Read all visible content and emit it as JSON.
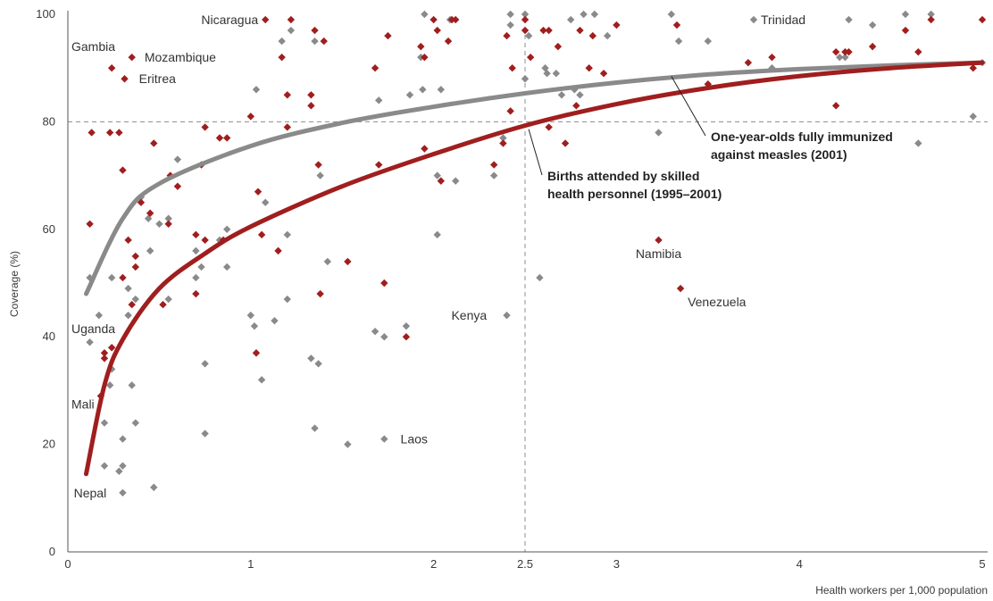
{
  "chart_data": {
    "type": "scatter",
    "xlabel": "Health workers per 1,000 population",
    "ylabel": "Coverage (%)",
    "xlim": [
      0,
      5
    ],
    "ylim": [
      0,
      100
    ],
    "x_ticks": [
      "0",
      "1",
      "2",
      "2.5",
      "3",
      "4",
      "5"
    ],
    "x_tick_values": [
      0,
      1,
      2,
      2.5,
      3,
      4,
      5
    ],
    "y_ticks": [
      "0",
      "20",
      "40",
      "60",
      "80",
      "100"
    ],
    "y_tick_values": [
      0,
      20,
      40,
      60,
      80,
      100
    ],
    "reference_lines": {
      "x": 2.5,
      "y": 80
    },
    "colors": {
      "measles": "#8a8a8a",
      "births": "#a01e1e"
    },
    "series": [
      {
        "name": "One-year-olds fully immunized against measles (2001)",
        "label_lines": [
          "One-year-olds fully immunized",
          "against measles (2001)"
        ],
        "color": "#8a8a8a",
        "points": [
          [
            0.12,
            39
          ],
          [
            0.12,
            51
          ],
          [
            0.17,
            44
          ],
          [
            0.2,
            24
          ],
          [
            0.2,
            16
          ],
          [
            0.23,
            31
          ],
          [
            0.24,
            34
          ],
          [
            0.24,
            51
          ],
          [
            0.28,
            15
          ],
          [
            0.3,
            11
          ],
          [
            0.3,
            16
          ],
          [
            0.3,
            21
          ],
          [
            0.33,
            44
          ],
          [
            0.33,
            49
          ],
          [
            0.35,
            31
          ],
          [
            0.37,
            24
          ],
          [
            0.37,
            47
          ],
          [
            0.4,
            66
          ],
          [
            0.44,
            62
          ],
          [
            0.45,
            56
          ],
          [
            0.47,
            12
          ],
          [
            0.5,
            61
          ],
          [
            0.55,
            62
          ],
          [
            0.55,
            47
          ],
          [
            0.6,
            73
          ],
          [
            0.7,
            56
          ],
          [
            0.7,
            51
          ],
          [
            0.73,
            53
          ],
          [
            0.75,
            35
          ],
          [
            0.75,
            22
          ],
          [
            0.83,
            58
          ],
          [
            0.87,
            60
          ],
          [
            0.87,
            53
          ],
          [
            1.0,
            44
          ],
          [
            1.02,
            42
          ],
          [
            1.03,
            86
          ],
          [
            1.06,
            32
          ],
          [
            1.08,
            65
          ],
          [
            1.13,
            43
          ],
          [
            1.17,
            95
          ],
          [
            1.2,
            47
          ],
          [
            1.2,
            59
          ],
          [
            1.22,
            97
          ],
          [
            1.33,
            36
          ],
          [
            1.35,
            23
          ],
          [
            1.35,
            95
          ],
          [
            1.37,
            35
          ],
          [
            1.38,
            70
          ],
          [
            1.42,
            54
          ],
          [
            1.53,
            20
          ],
          [
            1.68,
            41
          ],
          [
            1.7,
            84
          ],
          [
            1.73,
            40
          ],
          [
            1.73,
            21
          ],
          [
            1.85,
            42
          ],
          [
            1.87,
            85
          ],
          [
            1.94,
            86
          ],
          [
            1.95,
            100
          ],
          [
            1.93,
            92
          ],
          [
            2.02,
            70
          ],
          [
            2.02,
            59
          ],
          [
            2.04,
            86
          ],
          [
            2.09,
            99
          ],
          [
            2.12,
            69
          ],
          [
            2.33,
            70
          ],
          [
            2.38,
            77
          ],
          [
            2.4,
            44
          ],
          [
            2.42,
            98
          ],
          [
            2.42,
            100
          ],
          [
            2.5,
            100
          ],
          [
            2.5,
            88
          ],
          [
            2.52,
            96
          ],
          [
            2.58,
            51
          ],
          [
            2.61,
            90
          ],
          [
            2.62,
            89
          ],
          [
            2.67,
            89
          ],
          [
            2.7,
            85
          ],
          [
            2.75,
            99
          ],
          [
            2.77,
            86
          ],
          [
            2.8,
            85
          ],
          [
            2.82,
            100
          ],
          [
            2.88,
            100
          ],
          [
            2.95,
            96
          ],
          [
            3.23,
            78
          ],
          [
            3.3,
            100
          ],
          [
            3.34,
            95
          ],
          [
            3.5,
            95
          ],
          [
            3.75,
            99
          ],
          [
            3.85,
            90
          ],
          [
            4.22,
            92
          ],
          [
            4.25,
            92
          ],
          [
            4.27,
            99
          ],
          [
            4.4,
            98
          ],
          [
            4.58,
            100
          ],
          [
            4.65,
            76
          ],
          [
            4.72,
            100
          ],
          [
            4.95,
            81
          ],
          [
            5.0,
            91
          ]
        ]
      },
      {
        "name": "Births attended by skilled health personnel (1995–2001)",
        "label_lines": [
          "Births attended by skilled",
          "health personnel (1995–2001)"
        ],
        "color": "#a01e1e",
        "points": [
          [
            0.12,
            61
          ],
          [
            0.13,
            78
          ],
          [
            0.18,
            29
          ],
          [
            0.2,
            36
          ],
          [
            0.2,
            37
          ],
          [
            0.23,
            78
          ],
          [
            0.24,
            38
          ],
          [
            0.24,
            90
          ],
          [
            0.28,
            78
          ],
          [
            0.3,
            71
          ],
          [
            0.3,
            51
          ],
          [
            0.31,
            88
          ],
          [
            0.33,
            58
          ],
          [
            0.35,
            46
          ],
          [
            0.35,
            92
          ],
          [
            0.37,
            55
          ],
          [
            0.37,
            53
          ],
          [
            0.4,
            65
          ],
          [
            0.45,
            63
          ],
          [
            0.47,
            76
          ],
          [
            0.52,
            46
          ],
          [
            0.55,
            61
          ],
          [
            0.56,
            70
          ],
          [
            0.6,
            68
          ],
          [
            0.7,
            59
          ],
          [
            0.7,
            48
          ],
          [
            0.73,
            72
          ],
          [
            0.75,
            79
          ],
          [
            0.75,
            58
          ],
          [
            0.83,
            77
          ],
          [
            0.85,
            58
          ],
          [
            0.87,
            77
          ],
          [
            1.0,
            81
          ],
          [
            1.03,
            37
          ],
          [
            1.04,
            67
          ],
          [
            1.06,
            59
          ],
          [
            1.08,
            99
          ],
          [
            1.15,
            56
          ],
          [
            1.17,
            92
          ],
          [
            1.2,
            79
          ],
          [
            1.2,
            85
          ],
          [
            1.22,
            99
          ],
          [
            1.33,
            83
          ],
          [
            1.33,
            85
          ],
          [
            1.35,
            97
          ],
          [
            1.37,
            72
          ],
          [
            1.38,
            48
          ],
          [
            1.4,
            95
          ],
          [
            1.53,
            54
          ],
          [
            1.68,
            90
          ],
          [
            1.7,
            72
          ],
          [
            1.73,
            50
          ],
          [
            1.75,
            96
          ],
          [
            1.85,
            40
          ],
          [
            1.93,
            94
          ],
          [
            1.95,
            75
          ],
          [
            1.95,
            92
          ],
          [
            2.0,
            99
          ],
          [
            2.02,
            97
          ],
          [
            2.04,
            69
          ],
          [
            2.08,
            95
          ],
          [
            2.1,
            99
          ],
          [
            2.12,
            99
          ],
          [
            2.33,
            72
          ],
          [
            2.38,
            76
          ],
          [
            2.4,
            96
          ],
          [
            2.42,
            82
          ],
          [
            2.43,
            90
          ],
          [
            2.5,
            97
          ],
          [
            2.5,
            99
          ],
          [
            2.53,
            92
          ],
          [
            2.6,
            97
          ],
          [
            2.63,
            97
          ],
          [
            2.63,
            79
          ],
          [
            2.68,
            94
          ],
          [
            2.72,
            76
          ],
          [
            2.78,
            83
          ],
          [
            2.8,
            97
          ],
          [
            2.85,
            90
          ],
          [
            2.87,
            96
          ],
          [
            2.93,
            89
          ],
          [
            3.0,
            98
          ],
          [
            3.23,
            58
          ],
          [
            3.33,
            98
          ],
          [
            3.35,
            49
          ],
          [
            3.5,
            87
          ],
          [
            3.72,
            91
          ],
          [
            3.85,
            92
          ],
          [
            4.2,
            93
          ],
          [
            4.2,
            83
          ],
          [
            4.25,
            93
          ],
          [
            4.27,
            93
          ],
          [
            4.4,
            94
          ],
          [
            4.58,
            97
          ],
          [
            4.65,
            93
          ],
          [
            4.72,
            99
          ],
          [
            4.95,
            90
          ],
          [
            5.0,
            99
          ]
        ]
      }
    ],
    "trend_lines": [
      {
        "series": "measles",
        "points": [
          [
            0.1,
            48
          ],
          [
            0.3,
            62
          ],
          [
            0.5,
            68.5
          ],
          [
            1,
            75.5
          ],
          [
            1.5,
            79.8
          ],
          [
            2,
            82.8
          ],
          [
            2.5,
            85.3
          ],
          [
            3,
            87.3
          ],
          [
            3.5,
            88.8
          ],
          [
            4,
            89.8
          ],
          [
            4.5,
            90.5
          ],
          [
            5,
            91
          ]
        ]
      },
      {
        "series": "births",
        "points": [
          [
            0.1,
            14.5
          ],
          [
            0.2,
            31
          ],
          [
            0.3,
            39.5
          ],
          [
            0.5,
            49
          ],
          [
            0.75,
            55.5
          ],
          [
            1,
            60.5
          ],
          [
            1.5,
            68
          ],
          [
            2,
            74
          ],
          [
            2.5,
            79.3
          ],
          [
            3,
            83.3
          ],
          [
            3.5,
            86.3
          ],
          [
            4,
            88.5
          ],
          [
            4.5,
            90
          ],
          [
            5,
            91
          ]
        ]
      }
    ],
    "annotations": [
      {
        "text": "Nicaragua",
        "x": 1.08,
        "y": 99,
        "anchor": "end"
      },
      {
        "text": "Trinidad",
        "x": 3.75,
        "y": 99,
        "anchor": "start"
      },
      {
        "text": "Gambia",
        "x": 0.0,
        "y": 94,
        "anchor": "start"
      },
      {
        "text": "Mozambique",
        "x": 0.38,
        "y": 92,
        "anchor": "start"
      },
      {
        "text": "Eritrea",
        "x": 0.35,
        "y": 88,
        "anchor": "start"
      },
      {
        "text": "Uganda",
        "x": 0.0,
        "y": 41.5,
        "anchor": "start"
      },
      {
        "text": "Mali",
        "x": 0.0,
        "y": 27.5,
        "anchor": "start"
      },
      {
        "text": "Nepal",
        "x": 0.25,
        "y": 11,
        "anchor": "end"
      },
      {
        "text": "Laos",
        "x": 1.78,
        "y": 21,
        "anchor": "start"
      },
      {
        "text": "Kenya",
        "x": 2.33,
        "y": 44,
        "anchor": "end"
      },
      {
        "text": "Namibia",
        "x": 3.23,
        "y": 55.5,
        "anchor": "middle"
      },
      {
        "text": "Venezuela",
        "x": 3.35,
        "y": 46.5,
        "anchor": "start"
      }
    ]
  }
}
